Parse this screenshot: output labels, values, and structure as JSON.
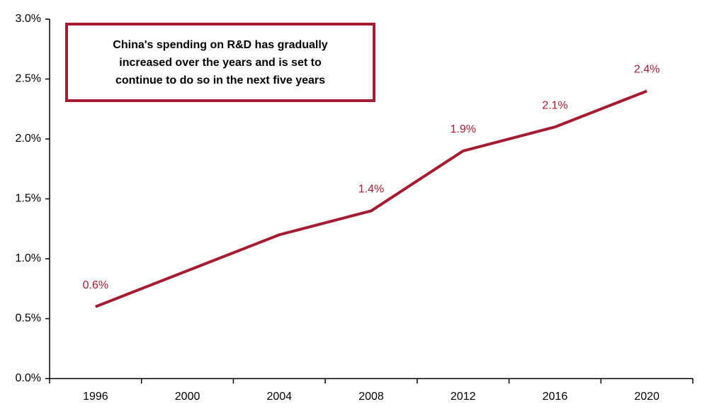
{
  "chart_data": {
    "type": "line",
    "annotation": [
      "China's spending on R&D has gradually",
      "increased over the years and is set to",
      "continue to do so in the next five years"
    ],
    "categories": [
      "1996",
      "2000",
      "2004",
      "2008",
      "2012",
      "2016",
      "2020"
    ],
    "values": [
      0.6,
      0.9,
      1.2,
      1.4,
      1.9,
      2.1,
      2.4
    ],
    "value_labels": [
      "0.6%",
      null,
      null,
      "1.4%",
      "1.9%",
      "2.1%",
      "2.4%"
    ],
    "color": "#a51c30",
    "ylim": [
      0,
      3
    ],
    "yticks": [
      {
        "value": 0,
        "label": "0.0%"
      },
      {
        "value": 0.5,
        "label": "0.5%"
      },
      {
        "value": 1,
        "label": "1.0%"
      },
      {
        "value": 1.5,
        "label": "1.5%"
      },
      {
        "value": 2,
        "label": "2.0%"
      },
      {
        "value": 2.5,
        "label": "2.5%"
      },
      {
        "value": 3,
        "label": "3.0%"
      }
    ],
    "grid": false
  }
}
